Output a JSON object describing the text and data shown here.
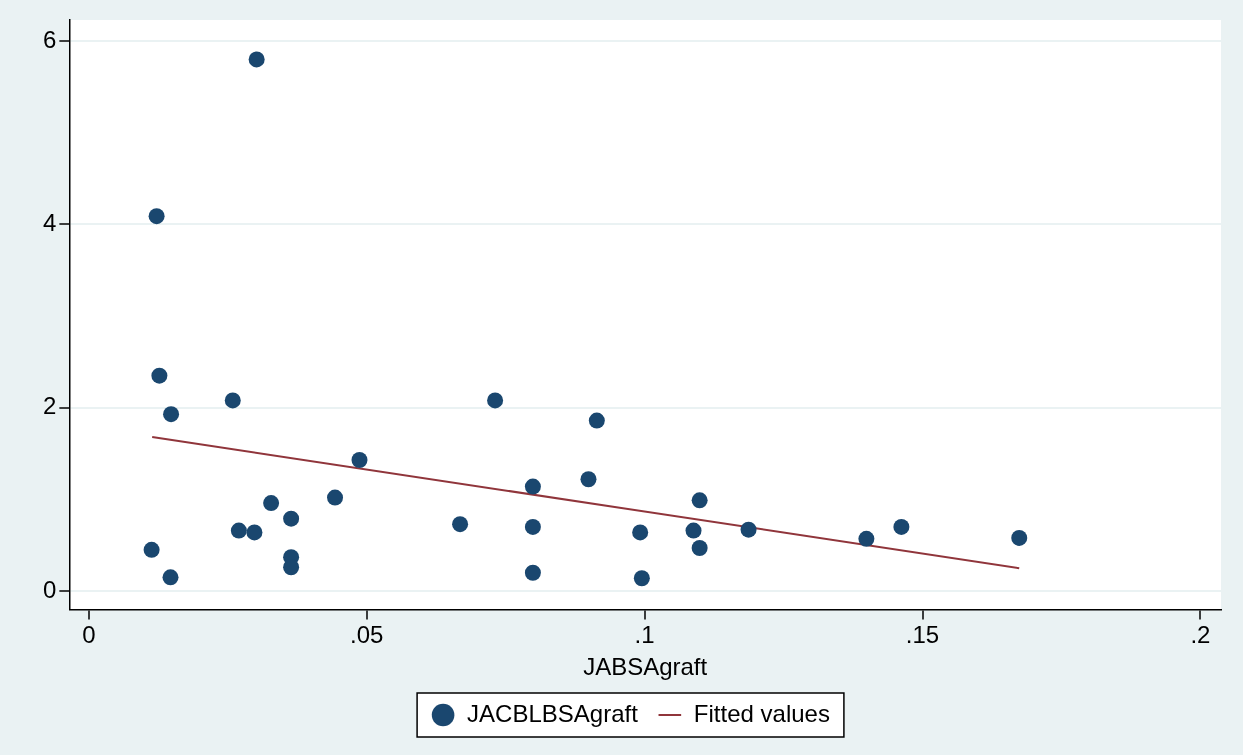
{
  "chart_data": {
    "type": "scatter",
    "xlabel": "JABSAgraft",
    "xlim": [
      -0.0035,
      0.2037
    ],
    "ylim": [
      -0.2,
      6.23
    ],
    "xticks": [
      {
        "value": 0,
        "label": "0"
      },
      {
        "value": 0.05,
        "label": ".05"
      },
      {
        "value": 0.1,
        "label": ".1"
      },
      {
        "value": 0.15,
        "label": ".15"
      },
      {
        "value": 0.2,
        "label": ".2"
      }
    ],
    "yticks": [
      0,
      2,
      4,
      6
    ],
    "grid": "y",
    "legend": "bottom",
    "series": [
      {
        "name": "JACBLBSAgraft",
        "marker": "circle",
        "color": "#1a476f",
        "x": [
          0.0127,
          0.0148,
          0.0259,
          0.0731,
          0.0914,
          0.0487,
          0.0899,
          0.0799,
          0.0443,
          0.0328,
          0.0364,
          0.027,
          0.0298,
          0.0668,
          0.0799,
          0.0113,
          0.0364,
          0.0364,
          0.0147,
          0.0799,
          0.0992,
          0.0995,
          0.0302,
          0.0122,
          0.1099,
          0.1088,
          0.1099,
          0.1187,
          0.1399,
          0.1462,
          0.1674
        ],
        "values": [
          2.35,
          1.93,
          2.08,
          2.08,
          1.86,
          1.43,
          1.22,
          1.14,
          1.02,
          0.96,
          0.79,
          0.66,
          0.64,
          0.73,
          0.7,
          0.45,
          0.37,
          0.26,
          0.15,
          0.2,
          0.64,
          0.14,
          5.8,
          4.09,
          0.99,
          0.66,
          0.47,
          0.67,
          0.57,
          0.7,
          0.58
        ]
      },
      {
        "name": "Fitted values",
        "type": "line",
        "color": "#90353b",
        "x": [
          0.0114,
          0.1674
        ],
        "values": [
          1.68,
          0.25
        ]
      }
    ]
  }
}
